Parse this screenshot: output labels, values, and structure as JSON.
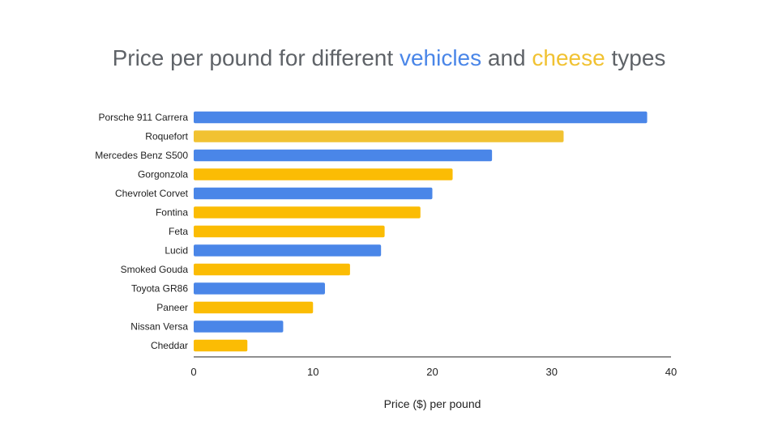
{
  "title": {
    "part1": "Price per pound for different ",
    "highlight1": "vehicles",
    "part2": " and ",
    "highlight2": "cheese",
    "part3": " types"
  },
  "colors": {
    "vehicle": "#4a86e8",
    "cheese": "#fbbc04",
    "roquefort": "#f1c232",
    "title_vehicle": "#4a86e8",
    "title_cheese": "#f1c232",
    "axis_line": "#222222"
  },
  "chart_data": {
    "type": "bar",
    "orientation": "horizontal",
    "xlabel": "Price ($) per pound",
    "ylabel": "",
    "xlim": [
      0,
      40
    ],
    "xticks": [
      0,
      10,
      20,
      30,
      40
    ],
    "grid": false,
    "categories": [
      "Porsche 911 Carrera",
      "Roquefort",
      "Mercedes Benz S500",
      "Gorgonzola",
      "Chevrolet Corvet",
      "Fontina",
      "Feta",
      "Lucid",
      "Smoked Gouda",
      "Toyota GR86",
      "Paneer",
      "Nissan Versa",
      "Cheddar"
    ],
    "values": [
      38,
      31,
      25,
      21.7,
      20,
      19,
      16,
      15.7,
      13.1,
      11,
      10,
      7.5,
      4.5
    ],
    "bar_colors": [
      "#4a86e8",
      "#f1c232",
      "#4a86e8",
      "#fbbc04",
      "#4a86e8",
      "#fbbc04",
      "#fbbc04",
      "#4a86e8",
      "#fbbc04",
      "#4a86e8",
      "#fbbc04",
      "#4a86e8",
      "#fbbc04"
    ]
  }
}
